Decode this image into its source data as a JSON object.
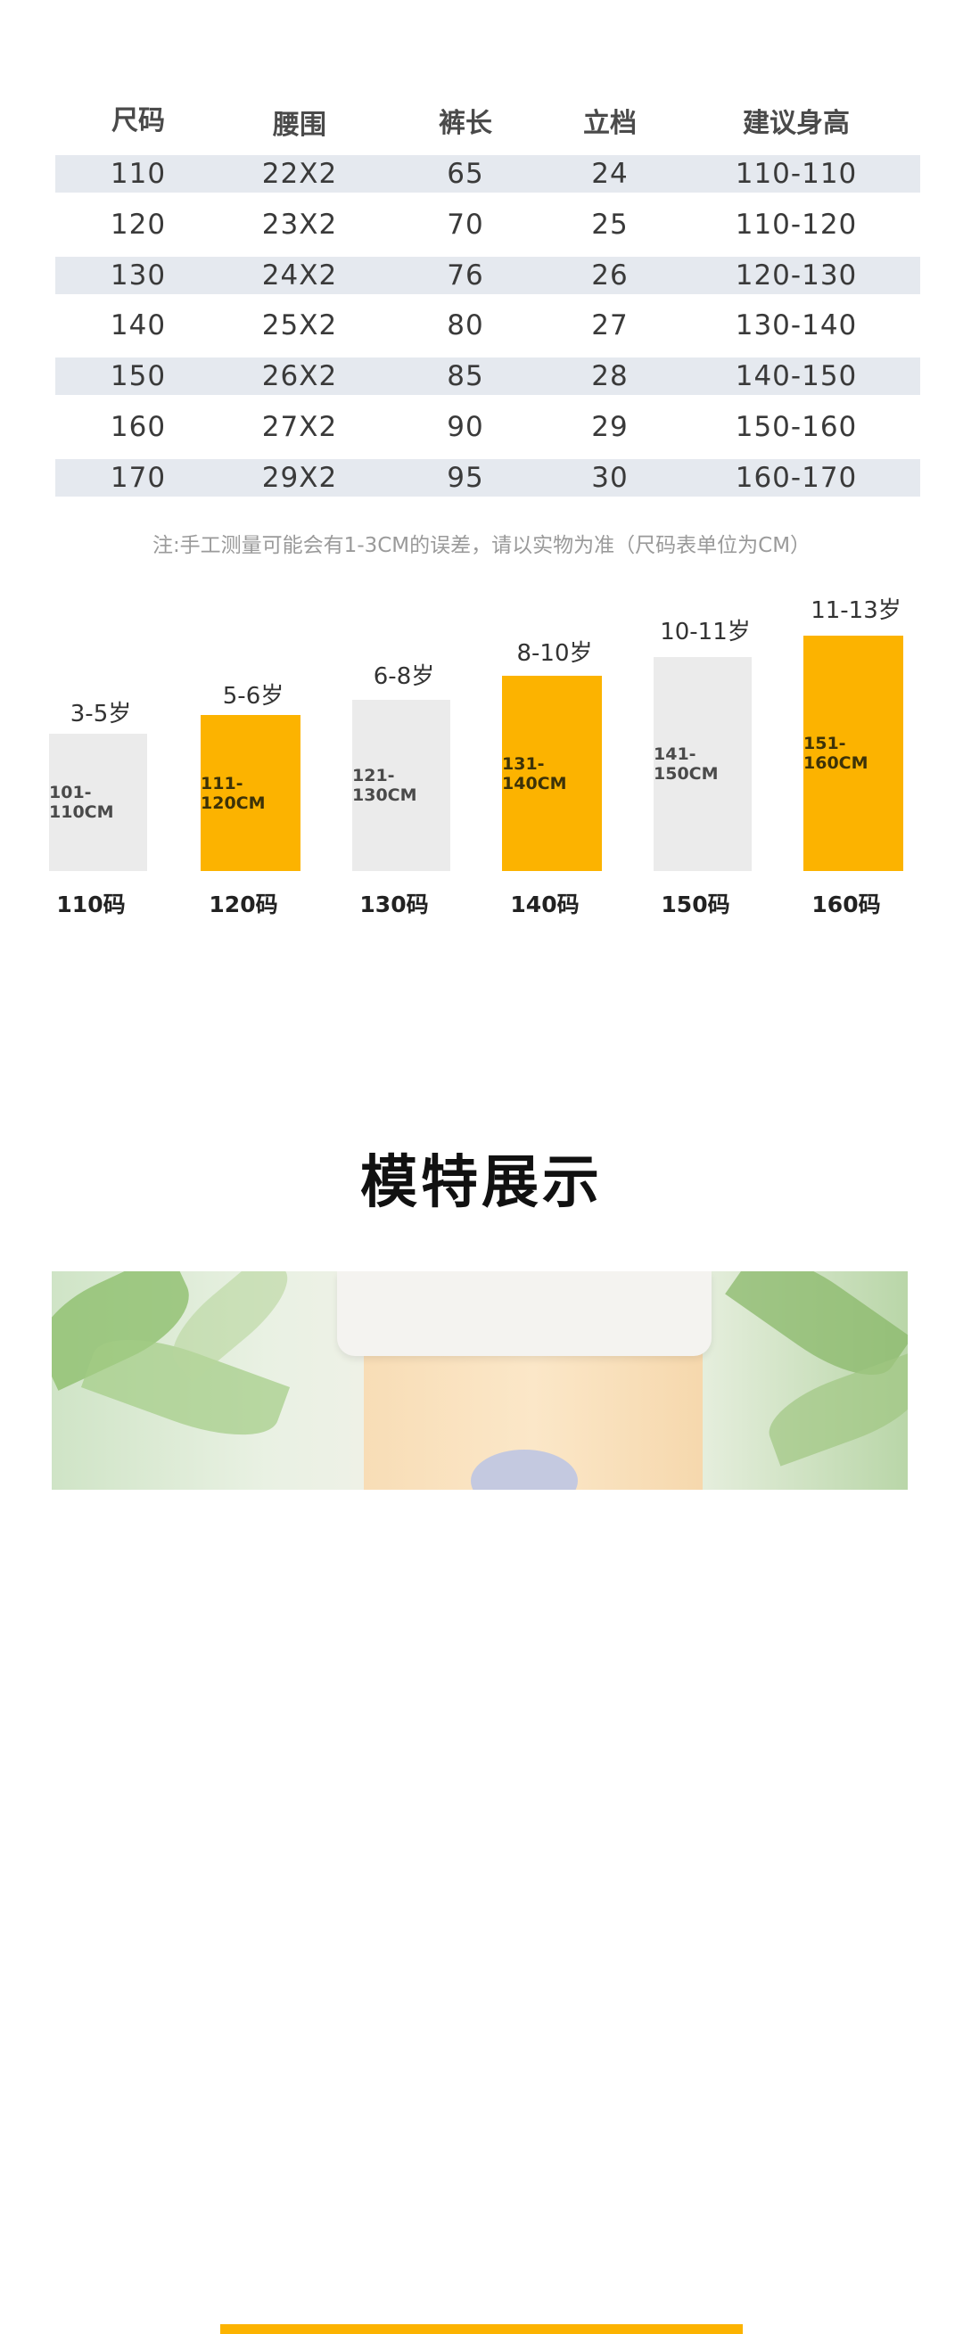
{
  "size_table": {
    "headers": [
      "尺码",
      "腰围",
      "裤长",
      "立档",
      "建议身高"
    ],
    "rows": [
      [
        "110",
        "22X2",
        "65",
        "24",
        "110-110"
      ],
      [
        "120",
        "23X2",
        "70",
        "25",
        "110-120"
      ],
      [
        "130",
        "24X2",
        "76",
        "26",
        "120-130"
      ],
      [
        "140",
        "25X2",
        "80",
        "27",
        "130-140"
      ],
      [
        "150",
        "26X2",
        "85",
        "28",
        "140-150"
      ],
      [
        "160",
        "27X2",
        "90",
        "29",
        "150-160"
      ],
      [
        "170",
        "29X2",
        "95",
        "30",
        "160-170"
      ]
    ],
    "note": "注:手工测量可能会有1-3CM的误差，请以实物为准（尺码表单位为CM）"
  },
  "age_chart": {
    "items": [
      {
        "age": "3-5岁",
        "height": "101-110CM",
        "size": "110码",
        "color": "grey"
      },
      {
        "age": "5-6岁",
        "height": "111-120CM",
        "size": "120码",
        "color": "orange"
      },
      {
        "age": "6-8岁",
        "height": "121-130CM",
        "size": "130码",
        "color": "grey"
      },
      {
        "age": "8-10岁",
        "height": "131-140CM",
        "size": "140码",
        "color": "orange"
      },
      {
        "age": "10-11岁",
        "height": "141-150CM",
        "size": "150码",
        "color": "grey"
      },
      {
        "age": "11-13岁",
        "height": "151-160CM",
        "size": "160码",
        "color": "orange"
      }
    ]
  },
  "model_section": {
    "title": "模特展示"
  },
  "colors": {
    "accent": "#fcb300",
    "row_shade": "#e5e9ef",
    "bar_grey": "#ebebeb"
  }
}
